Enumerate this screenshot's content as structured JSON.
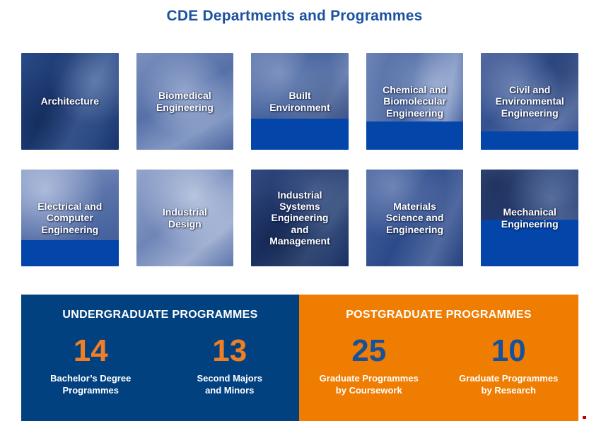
{
  "title": "CDE Departments and Programmes",
  "departments": [
    {
      "label": "Architecture"
    },
    {
      "label": "Biomedical\nEngineering"
    },
    {
      "label": "Built\nEnvironment"
    },
    {
      "label": "Chemical and\nBiomolecular\nEngineering"
    },
    {
      "label": "Civil and\nEnvironmental\nEngineering"
    },
    {
      "label": "Electrical and\nComputer\nEngineering"
    },
    {
      "label": "Industrial\nDesign"
    },
    {
      "label": "Industrial\nSystems\nEngineering\nand\nManagement"
    },
    {
      "label": "Materials\nScience and\nEngineering"
    },
    {
      "label": "Mechanical\nEngineering"
    }
  ],
  "undergraduate": {
    "heading": "UNDERGRADUATE PROGRAMMES",
    "stats": [
      {
        "value": "14",
        "label": "Bachelor’s Degree\nProgrammes"
      },
      {
        "value": "13",
        "label": "Second Majors\nand Minors"
      }
    ]
  },
  "postgraduate": {
    "heading": "POSTGRADUATE PROGRAMMES",
    "stats": [
      {
        "value": "25",
        "label": "Graduate Programmes\nby Coursework"
      },
      {
        "value": "10",
        "label": "Graduate Programmes\nby Research"
      }
    ]
  },
  "colors": {
    "title_blue": "#1B53A1",
    "panel_blue": "#024180",
    "panel_orange": "#EE7D01",
    "tile_bar_blue": "#0345A8",
    "number_orange": "#EE7F27",
    "number_blue": "#17509B",
    "corner_mark_red": "#C00000"
  }
}
